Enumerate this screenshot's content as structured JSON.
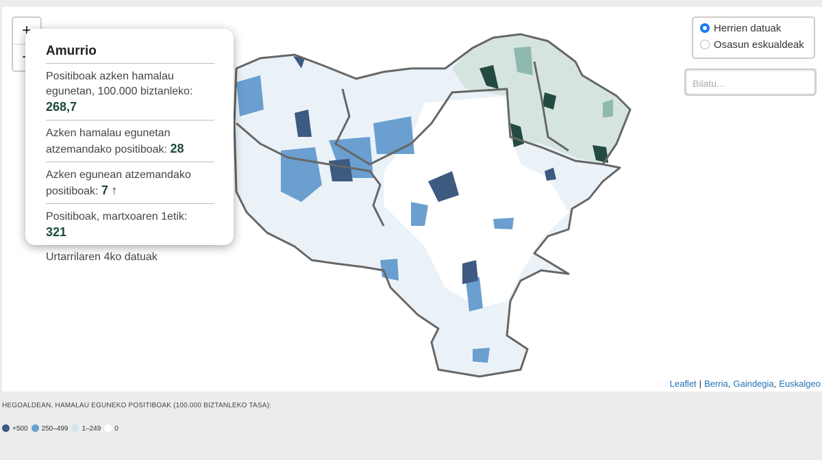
{
  "zoom": {
    "in": "+",
    "out": "−"
  },
  "popup": {
    "title": "Amurrio",
    "rows": [
      {
        "label": "Positiboak azken hamalau egunetan, 100.000 biztanleko:",
        "value": "268,7"
      },
      {
        "label": "Azken hamalau egunetan atzemandako positiboak:",
        "value": "28"
      },
      {
        "label": "Azken egunean atzemandako positiboak:",
        "value": "7",
        "trend": "↑"
      },
      {
        "label": "Positiboak, martxoaren 1etik:",
        "value": "321"
      }
    ],
    "footer": "Urtarrilaren 4ko datuak"
  },
  "layers": {
    "options": [
      "Herrien datuak",
      "Osasun eskualdeak"
    ],
    "selected": 0
  },
  "search": {
    "placeholder": "Bilatu..."
  },
  "attribution": {
    "links": [
      "Leaflet",
      "Berria",
      "Gaindegia",
      "Euskalgeo"
    ],
    "separators": [
      "|",
      ",",
      ","
    ]
  },
  "legend": {
    "title": "HEGOALDEAN, HAMALAU EGUNEKO POSITIBOAK (100.000 BIZTANLEKO TASA):",
    "items": [
      {
        "label": "+500",
        "color": "#3d5a80"
      },
      {
        "label": "250–499",
        "color": "#6a9fd0"
      },
      {
        "label": "1–249",
        "color": "#d3e4f1"
      },
      {
        "label": "0",
        "color": "#ffffff"
      }
    ]
  }
}
